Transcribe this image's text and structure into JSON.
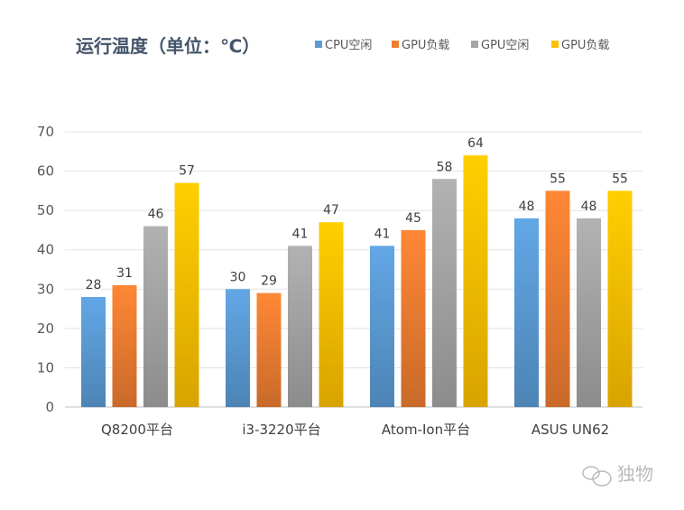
{
  "watermark": "独物",
  "chart_data": {
    "type": "bar",
    "title": "运行温度（单位：℃）",
    "categories": [
      "Q8200平台",
      "i3-3220平台",
      "Atom-Ion平台",
      "ASUS UN62"
    ],
    "series": [
      {
        "name": "CPU空闲",
        "color": "#5b9bd5",
        "values": [
          28,
          30,
          41,
          48
        ]
      },
      {
        "name": "GPU负载",
        "color": "#ed7d31",
        "values": [
          31,
          29,
          45,
          55
        ]
      },
      {
        "name": "GPU空闲",
        "color": "#a5a5a5",
        "values": [
          46,
          41,
          58,
          48
        ]
      },
      {
        "name": "GPU负载",
        "color": "#ffc000",
        "values": [
          57,
          47,
          64,
          55
        ]
      }
    ],
    "ylim": [
      0,
      70
    ],
    "yticks": [
      0,
      10,
      20,
      30,
      40,
      50,
      60,
      70
    ],
    "grid": true,
    "legend": "top-right",
    "xlabel": "",
    "ylabel": ""
  }
}
